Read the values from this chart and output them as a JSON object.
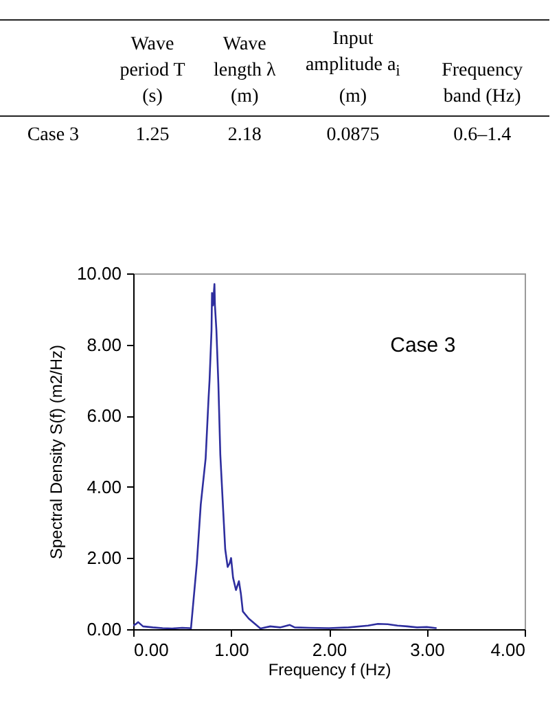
{
  "chart_data": [
    {
      "type": "other",
      "annotations": [
        "Wave period T (s)",
        "Wave length λ (m)",
        "Input amplitude a$_{i}$ (m)",
        "Frequency band (Hz)",
        "Case 3",
        "1.25",
        "2.18",
        "0.0875",
        "0.6–1.4"
      ]
    },
    {
      "type": "line",
      "xlabel": "Frequency f (Hz)",
      "ylabel": "Spectral Density S(f) (m2/Hz)",
      "annotations": [
        "Case 3"
      ],
      "xlim": [
        0,
        4
      ],
      "ylim": [
        0,
        10
      ],
      "xticks": [
        {
          "value": 0,
          "label": "0.00"
        },
        {
          "value": 1,
          "label": "1.00"
        },
        {
          "value": 2,
          "label": "2.00"
        },
        {
          "value": 3,
          "label": "3.00"
        },
        {
          "value": 4,
          "label": "4.00"
        }
      ],
      "yticks": [
        {
          "value": 0,
          "label": "0.00"
        },
        {
          "value": 2,
          "label": "2.00"
        },
        {
          "value": 4,
          "label": "4.00"
        },
        {
          "value": 6,
          "label": "6.00"
        },
        {
          "value": 8,
          "label": "8.00"
        },
        {
          "value": 10,
          "label": "10.00"
        }
      ],
      "grid": false,
      "series": [
        {
          "color": "#2e2e9e",
          "x": [
            0,
            0.03,
            0.05,
            0.1,
            0.2,
            0.3,
            0.4,
            0.5,
            0.58,
            0.59,
            0.65,
            0.69,
            0.74,
            0.77,
            0.78,
            0.8,
            0.805,
            0.815,
            0.83,
            0.835,
            0.85,
            0.87,
            0.89,
            0.92,
            0.94,
            0.965,
            0.985,
            1.0,
            1.02,
            1.05,
            1.08,
            1.1,
            1.12,
            1.18,
            1.3,
            1.4,
            1.5,
            1.6,
            1.65,
            1.8,
            2.0,
            2.2,
            2.4,
            2.5,
            2.6,
            2.7,
            2.8,
            2.9,
            3.0,
            3.1
          ],
          "values": [
            0.1,
            0.15,
            0.2,
            0.08,
            0.05,
            0.03,
            0.02,
            0.04,
            0.03,
            0.02,
            1.85,
            3.5,
            4.8,
            6.5,
            7.0,
            8.4,
            9.45,
            9.1,
            9.7,
            9.1,
            8.4,
            6.9,
            4.9,
            3.3,
            2.25,
            1.75,
            1.85,
            2.0,
            1.45,
            1.1,
            1.35,
            1.0,
            0.5,
            0.3,
            0.02,
            0.08,
            0.05,
            0.12,
            0.05,
            0.04,
            0.03,
            0.05,
            0.1,
            0.15,
            0.14,
            0.1,
            0.08,
            0.05,
            0.06,
            0.03
          ]
        }
      ]
    }
  ]
}
